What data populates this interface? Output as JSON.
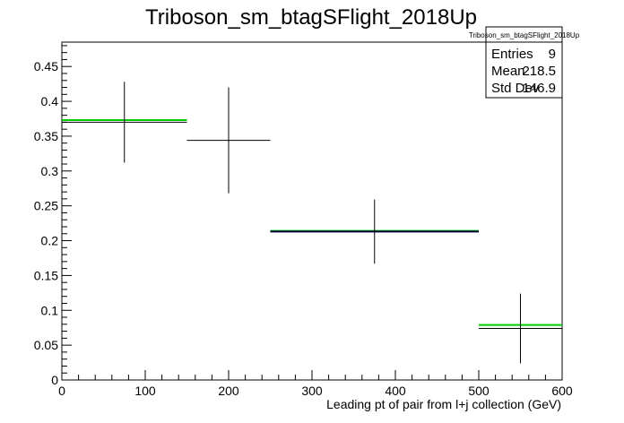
{
  "chart_data": {
    "type": "scatter",
    "title": "Triboson_sm_btagSFlight_2018Up",
    "xlabel": "Leading pt of pair from l+j collection (GeV)",
    "ylabel": "",
    "xlim": [
      0,
      600
    ],
    "ylim": [
      0,
      0.485
    ],
    "x_ticks": [
      "0",
      "100",
      "200",
      "300",
      "400",
      "500",
      "600"
    ],
    "y_ticks": [
      "0",
      "0.05",
      "0.1",
      "0.15",
      "0.2",
      "0.25",
      "0.3",
      "0.35",
      "0.4",
      "0.45"
    ],
    "grid": false,
    "bins": [
      {
        "xlow": 0,
        "xhigh": 150,
        "y": 0.37,
        "err": 0.058
      },
      {
        "xlow": 150,
        "xhigh": 250,
        "y": 0.344,
        "err": 0.076
      },
      {
        "xlow": 250,
        "xhigh": 500,
        "y": 0.213,
        "err": 0.046
      },
      {
        "xlow": 500,
        "xhigh": 600,
        "y": 0.074,
        "err": 0.05
      }
    ],
    "overlays": [
      {
        "color": "#00cc00",
        "bins": [
          {
            "xlow": 0,
            "xhigh": 150,
            "y": 0.373
          },
          {
            "xlow": 250,
            "xhigh": 500,
            "y": 0.214
          },
          {
            "xlow": 500,
            "xhigh": 600,
            "y": 0.079
          }
        ]
      },
      {
        "color": "#000080",
        "bins": [
          {
            "xlow": 250,
            "xhigh": 500,
            "y": 0.213
          }
        ]
      }
    ],
    "stats_box": {
      "name": "Triboson_sm_btagSFlight_2018Up",
      "rows": [
        {
          "label": "Entries",
          "value": "9"
        },
        {
          "label": "Mean",
          "value": "218.5"
        },
        {
          "label": "Std Dev",
          "value": "146.9"
        }
      ]
    }
  }
}
